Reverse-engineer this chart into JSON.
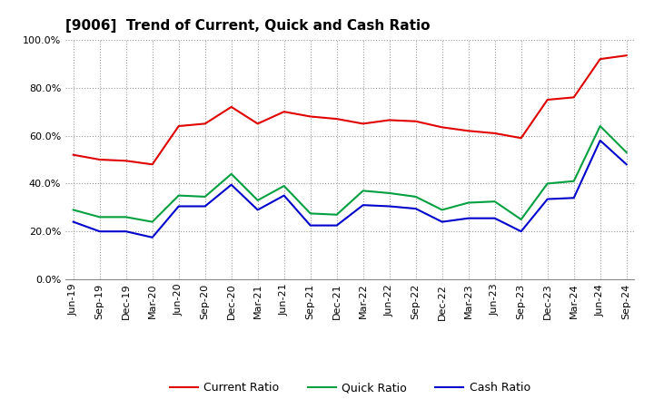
{
  "title": "[9006]  Trend of Current, Quick and Cash Ratio",
  "labels": [
    "Jun-19",
    "Sep-19",
    "Dec-19",
    "Mar-20",
    "Jun-20",
    "Sep-20",
    "Dec-20",
    "Mar-21",
    "Jun-21",
    "Sep-21",
    "Dec-21",
    "Mar-22",
    "Jun-22",
    "Sep-22",
    "Dec-22",
    "Mar-23",
    "Jun-23",
    "Sep-23",
    "Dec-23",
    "Mar-24",
    "Jun-24",
    "Sep-24"
  ],
  "current_ratio": [
    52.0,
    50.0,
    49.5,
    48.0,
    64.0,
    65.0,
    72.0,
    65.0,
    70.0,
    68.0,
    67.0,
    65.0,
    66.5,
    66.0,
    63.5,
    62.0,
    61.0,
    59.0,
    75.0,
    76.0,
    92.0,
    93.5
  ],
  "quick_ratio": [
    29.0,
    26.0,
    26.0,
    24.0,
    35.0,
    34.5,
    44.0,
    33.0,
    39.0,
    27.5,
    27.0,
    37.0,
    36.0,
    34.5,
    29.0,
    32.0,
    32.5,
    25.0,
    40.0,
    41.0,
    64.0,
    53.0
  ],
  "cash_ratio": [
    24.0,
    20.0,
    20.0,
    17.5,
    30.5,
    30.5,
    39.5,
    29.0,
    35.0,
    22.5,
    22.5,
    31.0,
    30.5,
    29.5,
    24.0,
    25.5,
    25.5,
    20.0,
    33.5,
    34.0,
    58.0,
    48.0
  ],
  "current_color": "#e00000",
  "quick_color": "#00a040",
  "cash_color": "#0000cc",
  "ylim": [
    0,
    100
  ],
  "yticks": [
    0,
    20,
    40,
    60,
    80,
    100
  ],
  "background_color": "#ffffff",
  "plot_bg_color": "#ffffff",
  "grid_color": "#999999",
  "title_fontsize": 11,
  "legend_fontsize": 9,
  "tick_fontsize": 8,
  "line_width": 1.5
}
